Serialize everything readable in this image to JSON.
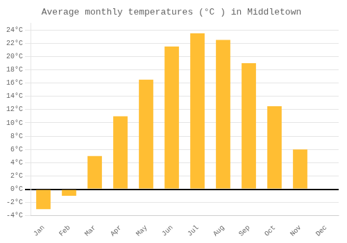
{
  "chart_data": {
    "type": "bar",
    "title": "Average monthly temperatures (°C ) in Middletown",
    "categories": [
      "Jan",
      "Feb",
      "Mar",
      "Apr",
      "May",
      "Jun",
      "Jul",
      "Aug",
      "Sep",
      "Oct",
      "Nov",
      "Dec"
    ],
    "values": [
      -3.0,
      -1.0,
      5.0,
      11.0,
      16.5,
      21.5,
      23.5,
      22.5,
      19.0,
      12.5,
      6.0,
      0.0
    ],
    "color": "#FFBE33",
    "ylim": [
      -4,
      25
    ],
    "yticks": [
      {
        "value": -4,
        "label": "-4°C"
      },
      {
        "value": -2,
        "label": "-2°C"
      },
      {
        "value": 0,
        "label": "0°C"
      },
      {
        "value": 2,
        "label": "2°C"
      },
      {
        "value": 4,
        "label": "4°C"
      },
      {
        "value": 6,
        "label": "6°C"
      },
      {
        "value": 8,
        "label": "8°C"
      },
      {
        "value": 10,
        "label": "10°C"
      },
      {
        "value": 12,
        "label": "12°C"
      },
      {
        "value": 14,
        "label": "14°C"
      },
      {
        "value": 16,
        "label": "16°C"
      },
      {
        "value": 18,
        "label": "18°C"
      },
      {
        "value": 20,
        "label": "20°C"
      },
      {
        "value": 22,
        "label": "22°C"
      },
      {
        "value": 24,
        "label": "24°C"
      }
    ],
    "grid": "y"
  }
}
